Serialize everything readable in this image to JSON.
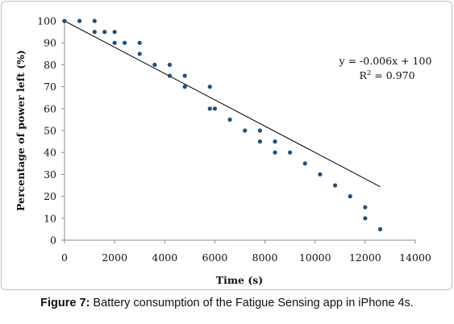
{
  "chart_data": {
    "type": "scatter",
    "xlabel": "Time (s)",
    "ylabel": "Percentage of power left (%)",
    "xlim": [
      0,
      14000
    ],
    "ylim": [
      0,
      100
    ],
    "xticks": [
      0,
      2000,
      4000,
      6000,
      8000,
      10000,
      12000,
      14000
    ],
    "yticks": [
      0,
      10,
      20,
      30,
      40,
      50,
      60,
      70,
      80,
      90,
      100
    ],
    "grid": false,
    "legend": "none",
    "marker_color": "#1f4e79",
    "line_color": "#000000",
    "points": [
      {
        "x": 0,
        "y": 100
      },
      {
        "x": 600,
        "y": 100
      },
      {
        "x": 1200,
        "y": 100
      },
      {
        "x": 1200,
        "y": 95
      },
      {
        "x": 1600,
        "y": 95
      },
      {
        "x": 2000,
        "y": 95
      },
      {
        "x": 2000,
        "y": 90
      },
      {
        "x": 2400,
        "y": 90
      },
      {
        "x": 3000,
        "y": 90
      },
      {
        "x": 3000,
        "y": 85
      },
      {
        "x": 3600,
        "y": 80
      },
      {
        "x": 4200,
        "y": 80
      },
      {
        "x": 4200,
        "y": 75
      },
      {
        "x": 4800,
        "y": 75
      },
      {
        "x": 4800,
        "y": 70
      },
      {
        "x": 5800,
        "y": 70
      },
      {
        "x": 5800,
        "y": 60
      },
      {
        "x": 6000,
        "y": 60
      },
      {
        "x": 6600,
        "y": 55
      },
      {
        "x": 7200,
        "y": 50
      },
      {
        "x": 7800,
        "y": 50
      },
      {
        "x": 7800,
        "y": 45
      },
      {
        "x": 8400,
        "y": 45
      },
      {
        "x": 8400,
        "y": 40
      },
      {
        "x": 9000,
        "y": 40
      },
      {
        "x": 9600,
        "y": 35
      },
      {
        "x": 10200,
        "y": 30
      },
      {
        "x": 10800,
        "y": 25
      },
      {
        "x": 11400,
        "y": 20
      },
      {
        "x": 12000,
        "y": 15
      },
      {
        "x": 12000,
        "y": 10
      },
      {
        "x": 12600,
        "y": 5
      }
    ],
    "trendline": {
      "slope": -0.006,
      "intercept": 100,
      "x_start": 0,
      "x_end": 12600,
      "equation": "y = -0.006x + 100",
      "r2_label": "R",
      "r2_exponent": "2",
      "r2_value": " = 0.970"
    }
  },
  "caption": {
    "label": "Figure 7:",
    "text": " Battery consumption of the Fatigue Sensing app in iPhone 4s."
  }
}
